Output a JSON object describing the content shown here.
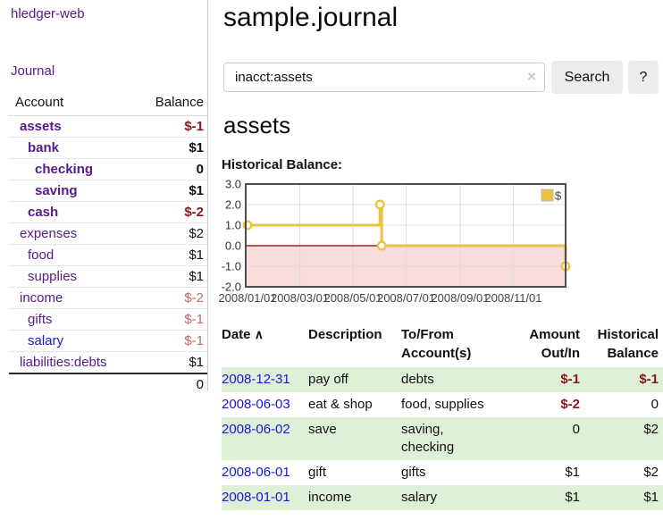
{
  "sidebar": {
    "brand": "hledger-web",
    "journal_label": "Journal",
    "accounts_table": {
      "headers": {
        "account": "Account",
        "balance": "Balance"
      },
      "rows": [
        {
          "name": "assets",
          "balance": "$-1"
        },
        {
          "name": "bank",
          "balance": "$1"
        },
        {
          "name": "checking",
          "balance": "0"
        },
        {
          "name": "saving",
          "balance": "$1"
        },
        {
          "name": "cash",
          "balance": "$-2"
        },
        {
          "name": "expenses",
          "balance": "$2"
        },
        {
          "name": "food",
          "balance": "$1"
        },
        {
          "name": "supplies",
          "balance": "$1"
        },
        {
          "name": "income",
          "balance": "$-2"
        },
        {
          "name": "gifts",
          "balance": "$-1"
        },
        {
          "name": "salary",
          "balance": "$-1"
        },
        {
          "name": "liabilities:debts",
          "balance": "$1"
        }
      ],
      "total": "0"
    }
  },
  "main": {
    "title": "sample.journal",
    "search": {
      "value": "inacct:assets",
      "clear_icon": "×",
      "button_label": "Search",
      "help_label": "?"
    },
    "account_heading": "assets",
    "chart_label": "Historical Balance:"
  },
  "chart_data": {
    "type": "line",
    "step": true,
    "series": [
      {
        "name": "$",
        "color": "#edc240",
        "points_day_value": [
          [
            0,
            1
          ],
          [
            152,
            2
          ],
          [
            154,
            0
          ],
          [
            365,
            -1
          ]
        ],
        "point_dates": [
          "2008-01-01",
          "2008-06-01",
          "2008-06-03",
          "2008-12-31"
        ]
      }
    ],
    "x_ticks": [
      {
        "day": 0,
        "label": "2008/01/01"
      },
      {
        "day": 60,
        "label": "2008/03/01"
      },
      {
        "day": 121,
        "label": "2008/05/01"
      },
      {
        "day": 182,
        "label": "2008/07/01"
      },
      {
        "day": 244,
        "label": "2008/09/01"
      },
      {
        "day": 305,
        "label": "2008/11/01"
      }
    ],
    "y_ticks": [
      3.0,
      2.0,
      1.0,
      0.0,
      -1.0,
      -2.0
    ],
    "xlim_days": [
      0,
      365
    ],
    "ylim": [
      -2,
      3
    ],
    "grid": true,
    "legend": {
      "label": "$",
      "position": "top-right"
    },
    "negative_region_color": "#f9dcdc",
    "zero_line_color": "#8b0000",
    "grid_color": "#dcdcdc",
    "border_color": "#4d4d4d"
  },
  "register_table": {
    "headers": {
      "date": "Date",
      "sort_icon": "∧",
      "description": "Description",
      "to_from": "To/From Account(s)",
      "amount": "Amount Out/In",
      "balance": "Historical Balance"
    },
    "rows": [
      {
        "date": "2008-12-31",
        "description": "pay off",
        "to_from": "debts",
        "amount": "$-1",
        "balance": "$-1"
      },
      {
        "date": "2008-06-03",
        "description": "eat & shop",
        "to_from": "food, supplies",
        "amount": "$-2",
        "balance": "0"
      },
      {
        "date": "2008-06-02",
        "description": "save",
        "to_from": "saving, checking",
        "amount": "0",
        "balance": "$2"
      },
      {
        "date": "2008-06-01",
        "description": "gift",
        "to_from": "gifts",
        "amount": "$1",
        "balance": "$2"
      },
      {
        "date": "2008-01-01",
        "description": "income",
        "to_from": "salary",
        "amount": "$1",
        "balance": "$1"
      }
    ]
  }
}
